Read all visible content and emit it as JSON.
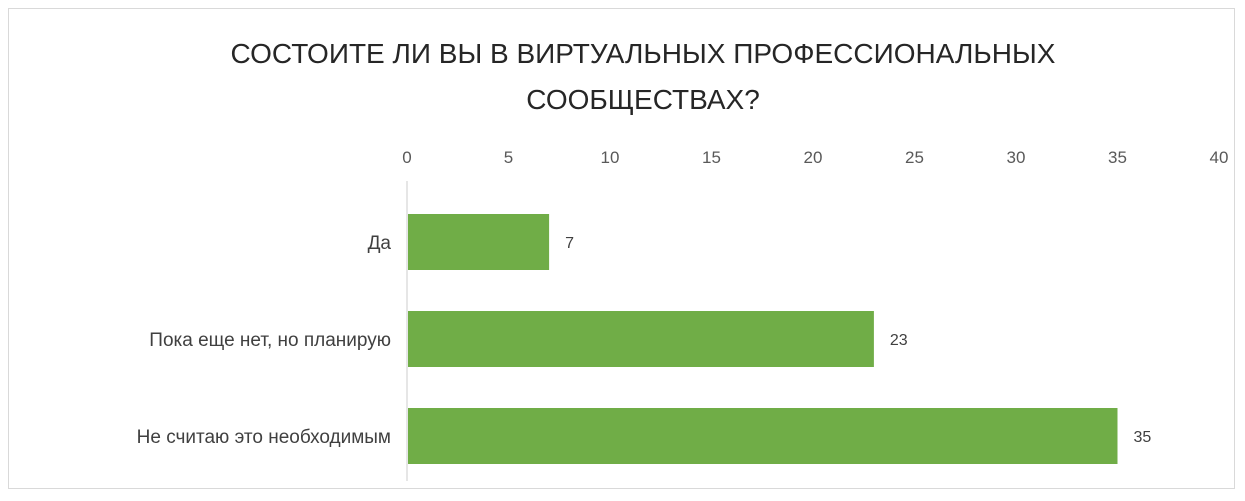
{
  "chart_data": {
    "type": "bar",
    "orientation": "horizontal",
    "title_lines": [
      "СОСТОИТЕ ЛИ ВЫ В ВИРТУАЛЬНЫХ ПРОФЕССИОНАЛЬНЫХ",
      "СООБЩЕСТВАХ?"
    ],
    "categories": [
      "Да",
      "Пока еще нет, но планирую",
      "Не считаю это необходимым"
    ],
    "values": [
      7,
      23,
      35
    ],
    "data_labels": [
      "7",
      "23",
      "35"
    ],
    "x_ticks": [
      0,
      5,
      10,
      15,
      20,
      25,
      30,
      35,
      40
    ],
    "x_axis_position": "top",
    "xlim": [
      0,
      40
    ],
    "grid": false,
    "legend": "none",
    "bar_color": "#70ad47",
    "axis_color": "#d9d9d9"
  }
}
